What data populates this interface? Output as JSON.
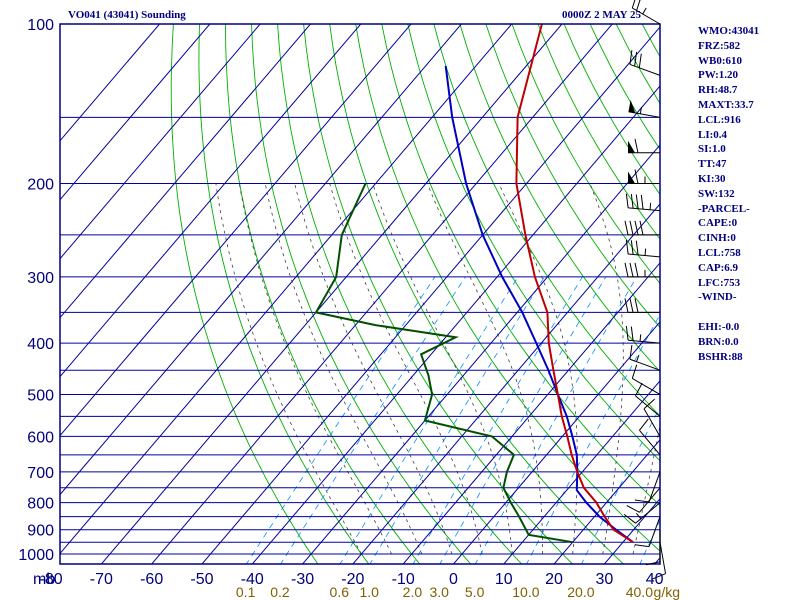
{
  "header": {
    "title": "VO041 (43041) Sounding",
    "datetime": "0000Z  2 MAY 25"
  },
  "indices": [
    "WMO:43041",
    "FRZ:582",
    "WB0:610",
    "PW:1.20",
    "RH:48.7",
    "MAXT:33.7",
    "LCL:916",
    "LI:0.4",
    "SI:1.0",
    "TT:47",
    "KI:30",
    "SW:132",
    "-PARCEL-",
    "CAPE:0",
    "CINH:0",
    "LCL:758",
    "CAP:6.9",
    "LFC:753",
    "-WIND-",
    "",
    "EHI:-0.0",
    "BRN:0.0",
    "BSHR:88"
  ],
  "colors": {
    "frame": "#000080",
    "isobar": "#0000a0",
    "isotherm": "#0000a0",
    "dry_adiabat": "#00b000",
    "moist_adiabat": "#404040",
    "mixing_ratio": "#0090ff",
    "temperature": "#c00000",
    "dewpoint": "#005000",
    "parcel": "#0000c0",
    "tick_labels": "#000080",
    "mixing_labels": "#806000"
  },
  "chart_data": {
    "type": "skew-t log-p sounding",
    "pressure_unit_label": "mb",
    "pressure_ticks": [
      100,
      200,
      300,
      400,
      500,
      600,
      700,
      800,
      900,
      1000
    ],
    "pressure_labels": [
      "100",
      "200",
      "300",
      "400",
      "500",
      "600",
      "700",
      "800",
      "900",
      "1000"
    ],
    "temperature_ticks": [
      -80,
      -70,
      -60,
      -50,
      -40,
      -30,
      -20,
      -10,
      0,
      10,
      20,
      30,
      40
    ],
    "temperature_labels": [
      "-80",
      "-70",
      "-60",
      "-50",
      "-40",
      "-30",
      "-20",
      "-10",
      "0",
      "10",
      "20",
      "30",
      "40"
    ],
    "mixing_ratio_values": [
      0.1,
      0.2,
      0.6,
      1.0,
      2.0,
      3.0,
      5.0,
      10.0,
      20.0,
      40.0
    ],
    "mixing_ratio_labels": [
      "0.1",
      "0.2",
      "0.6",
      "1.0",
      "2.0",
      "3.0",
      "5.0",
      "10.0",
      "20.0",
      "40.0"
    ],
    "mixing_ratio_unit": "g/kg",
    "temperature_profile": [
      {
        "p": 950,
        "t": 32.0
      },
      {
        "p": 900,
        "t": 26.0
      },
      {
        "p": 850,
        "t": 22.0
      },
      {
        "p": 800,
        "t": 18.0
      },
      {
        "p": 750,
        "t": 13.0
      },
      {
        "p": 700,
        "t": 9.0
      },
      {
        "p": 650,
        "t": 5.0
      },
      {
        "p": 600,
        "t": 1.0
      },
      {
        "p": 550,
        "t": -3.5
      },
      {
        "p": 500,
        "t": -8.0
      },
      {
        "p": 450,
        "t": -13.0
      },
      {
        "p": 400,
        "t": -18.5
      },
      {
        "p": 350,
        "t": -24.0
      },
      {
        "p": 300,
        "t": -32.5
      },
      {
        "p": 250,
        "t": -41.5
      },
      {
        "p": 200,
        "t": -52.0
      },
      {
        "p": 150,
        "t": -63.0
      },
      {
        "p": 100,
        "t": -74.0
      }
    ],
    "dewpoint_profile": [
      {
        "p": 950,
        "t": 20.0
      },
      {
        "p": 920,
        "t": 10.0
      },
      {
        "p": 850,
        "t": 5.0
      },
      {
        "p": 800,
        "t": 1.0
      },
      {
        "p": 750,
        "t": -3.0
      },
      {
        "p": 700,
        "t": -5.0
      },
      {
        "p": 650,
        "t": -6.5
      },
      {
        "p": 600,
        "t": -14.0
      },
      {
        "p": 560,
        "t": -30.0
      },
      {
        "p": 500,
        "t": -33.0
      },
      {
        "p": 460,
        "t": -37.0
      },
      {
        "p": 420,
        "t": -42.0
      },
      {
        "p": 390,
        "t": -38.0
      },
      {
        "p": 370,
        "t": -56.0
      },
      {
        "p": 350,
        "t": -70.0
      },
      {
        "p": 300,
        "t": -72.0
      },
      {
        "p": 250,
        "t": -78.0
      },
      {
        "p": 200,
        "t": -82.0
      }
    ],
    "parcel_profile": [
      {
        "p": 950,
        "t": 32.0
      },
      {
        "p": 900,
        "t": 26.5
      },
      {
        "p": 850,
        "t": 21.0
      },
      {
        "p": 800,
        "t": 16.0
      },
      {
        "p": 758,
        "t": 12.0
      },
      {
        "p": 700,
        "t": 9.0
      },
      {
        "p": 650,
        "t": 6.0
      },
      {
        "p": 600,
        "t": 2.0
      },
      {
        "p": 550,
        "t": -2.5
      },
      {
        "p": 500,
        "t": -8.0
      },
      {
        "p": 450,
        "t": -14.0
      },
      {
        "p": 400,
        "t": -21.0
      },
      {
        "p": 350,
        "t": -29.0
      },
      {
        "p": 300,
        "t": -39.0
      },
      {
        "p": 250,
        "t": -50.0
      },
      {
        "p": 200,
        "t": -62.0
      },
      {
        "p": 150,
        "t": -76.0
      },
      {
        "p": 120,
        "t": -86.0
      }
    ],
    "wind_barbs": [
      {
        "p": 100,
        "dir": 300,
        "spd": 25
      },
      {
        "p": 125,
        "dir": 290,
        "spd": 30
      },
      {
        "p": 150,
        "dir": 280,
        "spd": 55
      },
      {
        "p": 175,
        "dir": 270,
        "spd": 60
      },
      {
        "p": 200,
        "dir": 270,
        "spd": 65
      },
      {
        "p": 225,
        "dir": 275,
        "spd": 45
      },
      {
        "p": 250,
        "dir": 270,
        "spd": 40
      },
      {
        "p": 275,
        "dir": 275,
        "spd": 35
      },
      {
        "p": 300,
        "dir": 270,
        "spd": 35
      },
      {
        "p": 350,
        "dir": 270,
        "spd": 30
      },
      {
        "p": 400,
        "dir": 275,
        "spd": 25
      },
      {
        "p": 450,
        "dir": 290,
        "spd": 15
      },
      {
        "p": 500,
        "dir": 300,
        "spd": 10
      },
      {
        "p": 550,
        "dir": 310,
        "spd": 10
      },
      {
        "p": 600,
        "dir": 330,
        "spd": 10
      },
      {
        "p": 650,
        "dir": 320,
        "spd": 10
      },
      {
        "p": 700,
        "dir": 200,
        "spd": 10
      },
      {
        "p": 750,
        "dir": 220,
        "spd": 10
      },
      {
        "p": 800,
        "dir": 230,
        "spd": 15
      },
      {
        "p": 850,
        "dir": 200,
        "spd": 10
      },
      {
        "p": 900,
        "dir": 180,
        "spd": 10
      },
      {
        "p": 950,
        "dir": 170,
        "spd": 10
      }
    ]
  }
}
